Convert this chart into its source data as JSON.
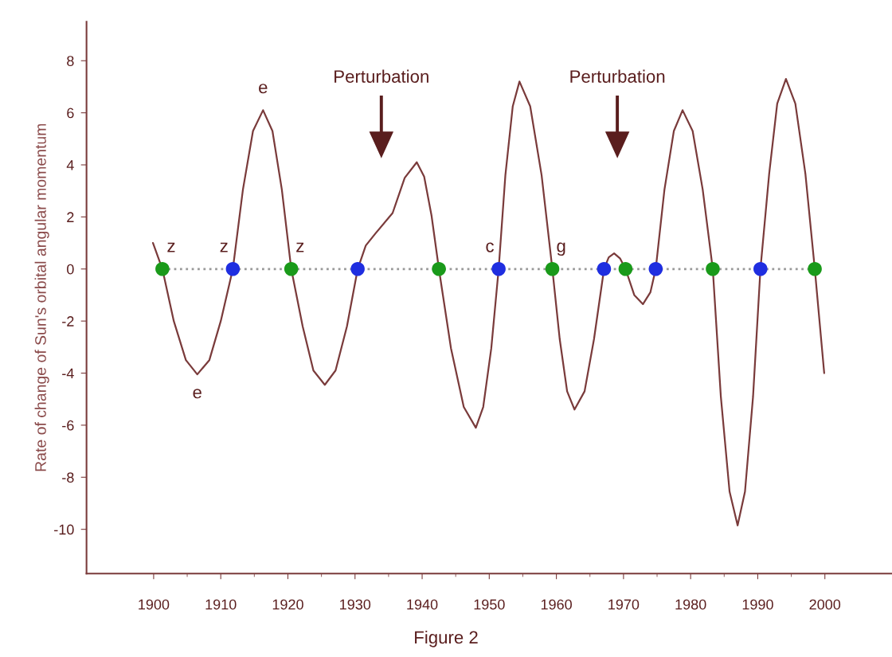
{
  "chart_data": {
    "type": "line",
    "ylabel": "Rate of change of Sun's orbital angular momentum",
    "xlim": [
      1890,
      2010
    ],
    "ylim": [
      -11.7,
      9.5
    ],
    "xticks": [
      1900,
      {
        "value": 1905,
        "label": null
      },
      1910,
      {
        "value": 1915,
        "label": null
      },
      1920,
      {
        "value": 1925,
        "label": null
      },
      1930,
      {
        "value": 1935,
        "label": null
      },
      1940,
      {
        "value": 1945,
        "label": null
      },
      1950,
      {
        "value": 1955,
        "label": null
      },
      1960,
      {
        "value": 1965,
        "label": null
      },
      1970,
      {
        "value": 1975,
        "label": null
      },
      1980,
      {
        "value": 1985,
        "label": null
      },
      1990,
      {
        "value": 1995,
        "label": null
      },
      2000
    ],
    "yticks": [
      -10,
      -8,
      -6,
      -4,
      -2,
      0,
      2,
      4,
      6,
      8
    ],
    "grid": false,
    "legend": false,
    "series": [
      {
        "color": "#999999",
        "line_style": "dotted",
        "marker": "none",
        "x": [
          1901.3,
          1998.5
        ],
        "values": [
          0,
          0
        ]
      },
      {
        "color": "#7a3b3b",
        "line_style": "solid",
        "marker": "none",
        "x": [
          1899.9,
          1901.3,
          1903.0,
          1904.8,
          1906.5,
          1908.3,
          1910.0,
          1911.8,
          1913.3,
          1914.8,
          1916.3,
          1917.7,
          1919.1,
          1920.5,
          1922.2,
          1923.8,
          1925.5,
          1927.1,
          1928.8,
          1930.4,
          1931.6,
          1933.0,
          1935.6,
          1937.4,
          1939.2,
          1940.3,
          1941.4,
          1942.5,
          1944.3,
          1946.2,
          1948.0,
          1949.1,
          1950.3,
          1951.4,
          1952.4,
          1953.5,
          1954.5,
          1956.1,
          1957.8,
          1959.4,
          1960.5,
          1961.6,
          1962.7,
          1964.2,
          1965.6,
          1967.1,
          1967.8,
          1968.6,
          1969.5,
          1970.3,
          1971.6,
          1972.9,
          1974.0,
          1974.8,
          1976.1,
          1977.5,
          1978.8,
          1980.3,
          1981.8,
          1983.3,
          1984.5,
          1985.8,
          1987.0,
          1988.1,
          1989.3,
          1990.4,
          1991.7,
          1992.9,
          1994.2,
          1995.6,
          1997.1,
          1998.5,
          1999.9
        ],
        "values": [
          1.0,
          0,
          -2.0,
          -3.5,
          -4.05,
          -3.5,
          -2.0,
          0,
          3.05,
          5.3,
          6.1,
          5.3,
          3.05,
          0,
          -2.2,
          -3.9,
          -4.45,
          -3.9,
          -2.2,
          0,
          0.9,
          1.35,
          2.15,
          3.5,
          4.1,
          3.55,
          2.05,
          0,
          -3.05,
          -5.3,
          -6.1,
          -5.3,
          -3.05,
          0,
          3.6,
          6.25,
          7.2,
          6.25,
          3.6,
          0,
          -2.7,
          -4.7,
          -5.4,
          -4.7,
          -2.7,
          0,
          0.45,
          0.6,
          0.4,
          0,
          -1.0,
          -1.35,
          -0.9,
          0,
          3.05,
          5.3,
          6.1,
          5.3,
          3.05,
          0,
          -4.9,
          -8.55,
          -9.85,
          -8.55,
          -4.9,
          0,
          3.65,
          6.35,
          7.3,
          6.35,
          3.65,
          0,
          -4.0
        ]
      },
      {
        "type": "scatter",
        "color": "#1a9a1a",
        "marker": "circle",
        "x": [
          1901.3,
          1920.5,
          1942.5,
          1959.4,
          1970.3,
          1983.3,
          1998.5
        ],
        "values": [
          0,
          0,
          0,
          0,
          0,
          0,
          0
        ]
      },
      {
        "type": "scatter",
        "color": "#1f2ee0",
        "marker": "circle",
        "x": [
          1911.8,
          1930.4,
          1951.4,
          1967.1,
          1974.8,
          1990.4
        ],
        "values": [
          0,
          0,
          0,
          0,
          0,
          0
        ]
      }
    ],
    "annotations": [
      {
        "text": "z",
        "x": 1901.3,
        "y": 0
      },
      {
        "text": "z",
        "x": 1911.8,
        "y": 0
      },
      {
        "text": "z",
        "x": 1920.5,
        "y": 0
      },
      {
        "text": "e",
        "x": 1916.3,
        "y": 6.1
      },
      {
        "text": "e",
        "x": 1906.5,
        "y": -4.05
      },
      {
        "text": "c",
        "x": 1951.4,
        "y": 0
      },
      {
        "text": "g",
        "x": 1959.4,
        "y": 0
      },
      "Perturbation",
      "Perturbation",
      "Figure 2"
    ]
  }
}
